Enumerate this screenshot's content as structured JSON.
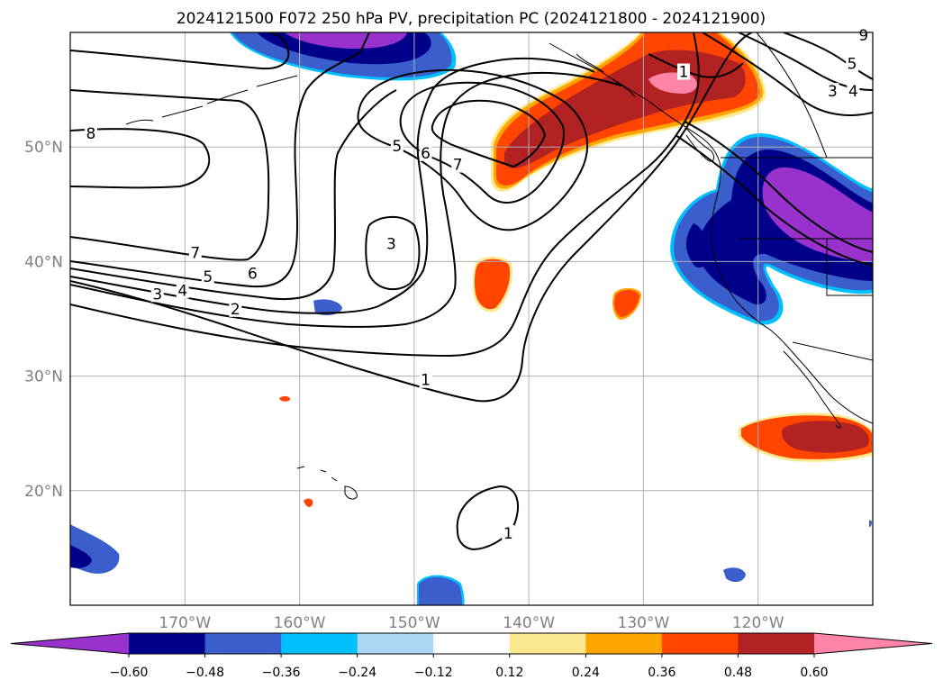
{
  "chart_data": {
    "type": "contour",
    "title": "2024121500 F072 250 hPa PV, precipitation PC (2024121800 - 2024121900)",
    "projection": "PlateCarree",
    "xlim": [
      -180,
      -110
    ],
    "ylim": [
      10,
      60
    ],
    "x_ticks": [
      -170,
      -160,
      -150,
      -140,
      -130,
      -120
    ],
    "x_tick_labels": [
      "170°W",
      "160°W",
      "150°W",
      "140°W",
      "130°W",
      "120°W"
    ],
    "y_ticks": [
      20,
      30,
      40,
      50
    ],
    "y_tick_labels": [
      "20°N",
      "30°N",
      "40°N",
      "50°N"
    ],
    "grid": true,
    "contour_field": "250 hPa PV",
    "contour_labels": [
      {
        "text": "8",
        "lon": -178.2,
        "lat": 51.1
      },
      {
        "text": "7",
        "lon": -169.1,
        "lat": 40.7
      },
      {
        "text": "6",
        "lon": -164.1,
        "lat": 38.9
      },
      {
        "text": "5",
        "lon": -168.0,
        "lat": 38.6
      },
      {
        "text": "4",
        "lon": -170.2,
        "lat": 37.4
      },
      {
        "text": "3",
        "lon": -172.4,
        "lat": 37.1
      },
      {
        "text": "2",
        "lon": -165.6,
        "lat": 35.8
      },
      {
        "text": "1",
        "lon": -149.0,
        "lat": 29.6
      },
      {
        "text": "3",
        "lon": -152.0,
        "lat": 41.5
      },
      {
        "text": "5",
        "lon": -151.5,
        "lat": 50.0
      },
      {
        "text": "6",
        "lon": -149.0,
        "lat": 49.4
      },
      {
        "text": "7",
        "lon": -146.2,
        "lat": 48.4
      },
      {
        "text": "1",
        "lon": -141.8,
        "lat": 16.2
      },
      {
        "text": "3",
        "lon": -113.5,
        "lat": 54.8
      },
      {
        "text": "4",
        "lon": -111.7,
        "lat": 54.8
      },
      {
        "text": "5",
        "lon": -111.8,
        "lat": 57.2
      },
      {
        "text": "9",
        "lon": -110.8,
        "lat": 59.7
      },
      {
        "text": "1",
        "lon": -126.5,
        "lat": 56.5
      }
    ],
    "fill_field": "precipitation PC",
    "colorbar": {
      "extend": "both",
      "levels": [
        -0.6,
        -0.48,
        -0.36,
        -0.24,
        -0.12,
        0.12,
        0.24,
        0.36,
        0.48,
        0.6
      ],
      "tick_labels": [
        "−0.60",
        "−0.48",
        "−0.36",
        "−0.24",
        "−0.12",
        "0.12",
        "0.24",
        "0.36",
        "0.48",
        "0.60"
      ],
      "colors": [
        "#9932cc",
        "#00008b",
        "#3a5fcd",
        "#00bfff",
        "#add8f5",
        "#ffffff",
        "#fce98f",
        "#ffa500",
        "#ff4500",
        "#b22222",
        "#ff85a8"
      ]
    }
  }
}
